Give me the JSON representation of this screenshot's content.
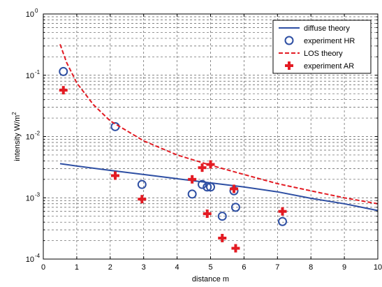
{
  "chart_data": {
    "type": "line",
    "title": "",
    "xlabel": "distance m",
    "ylabel": "intensity W/m²",
    "ylabel_parts": {
      "base": "intensity W/m",
      "superscript": "2"
    },
    "xlim": [
      0,
      10
    ],
    "ylim": [
      0.0001,
      1
    ],
    "yscale": "log",
    "grid": "on (dashed, major and minor)",
    "legend_placement": "top-right",
    "x_ticks": [
      "0",
      "1",
      "2",
      "3",
      "4",
      "5",
      "6",
      "7",
      "8",
      "9",
      "10"
    ],
    "y_ticks": [
      {
        "base": "10",
        "exp": "0",
        "value": 1
      },
      {
        "base": "10",
        "exp": "-1",
        "value": 0.1
      },
      {
        "base": "10",
        "exp": "-2",
        "value": 0.01
      },
      {
        "base": "10",
        "exp": "-3",
        "value": 0.001
      },
      {
        "base": "10",
        "exp": "-4",
        "value": 0.0001
      }
    ],
    "series": [
      {
        "name": "diffuse theory",
        "kind": "line",
        "style": "solid",
        "color": "#2e4fa3",
        "x": [
          0.5,
          1,
          2,
          3,
          4,
          5,
          6,
          7,
          8,
          9,
          10
        ],
        "y": [
          0.0036,
          0.0033,
          0.0028,
          0.0024,
          0.00205,
          0.00175,
          0.0015,
          0.00125,
          0.00098,
          0.0008,
          0.00062
        ]
      },
      {
        "name": "experiment HR",
        "kind": "marker",
        "marker": "circle",
        "color": "#2e4fa3",
        "x": [
          0.6,
          2.15,
          2.95,
          4.45,
          4.75,
          4.9,
          5.0,
          5.7,
          5.75,
          5.35,
          7.15
        ],
        "y": [
          0.115,
          0.0145,
          0.00165,
          0.00115,
          0.00165,
          0.0015,
          0.0015,
          0.0013,
          0.0007,
          0.0005,
          0.00041
        ]
      },
      {
        "name": "LOS theory",
        "kind": "line",
        "style": "dashed",
        "color": "#e31b23",
        "x": [
          0.5,
          0.7,
          1,
          1.5,
          2,
          3,
          4,
          5,
          6,
          7,
          8,
          9,
          10
        ],
        "y": [
          0.32,
          0.16,
          0.075,
          0.033,
          0.018,
          0.0085,
          0.005,
          0.0034,
          0.0024,
          0.0017,
          0.0013,
          0.001,
          0.0008
        ]
      },
      {
        "name": "experiment AR",
        "kind": "marker",
        "marker": "plus",
        "color": "#e31b23",
        "x": [
          0.6,
          2.15,
          2.95,
          4.45,
          4.75,
          5.0,
          4.9,
          5.7,
          5.35,
          5.75,
          7.15
        ],
        "y": [
          0.057,
          0.0023,
          0.00095,
          0.002,
          0.0031,
          0.0035,
          0.00055,
          0.0014,
          0.00022,
          0.00015,
          0.0006
        ]
      }
    ]
  }
}
